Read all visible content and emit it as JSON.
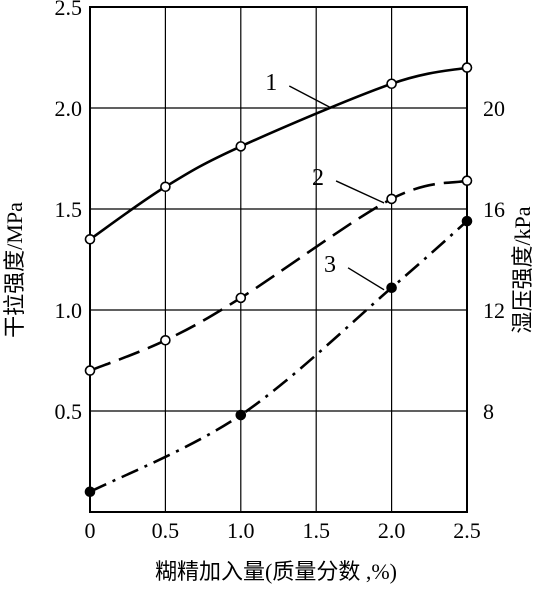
{
  "chart_data": {
    "type": "line",
    "xlabel": "糊精加入量(质量分数 ,%)",
    "ylabel_left": "干拉强度/MPa",
    "ylabel_right": "湿压强度/kPa",
    "xlim": [
      0,
      2.5
    ],
    "ylim_left": [
      0,
      2.5
    ],
    "ylim_right": [
      4,
      24
    ],
    "x_ticks": [
      "0",
      "0.5",
      "1.0",
      "1.5",
      "2.0",
      "2.5"
    ],
    "y_ticks_left": [
      "0.5",
      "1.0",
      "1.5",
      "2.0",
      "2.5"
    ],
    "y_ticks_right": [
      "8",
      "12",
      "16",
      "20"
    ],
    "grid": true,
    "series": [
      {
        "name": "1",
        "axis": "left",
        "line_style": "solid",
        "marker": "open-circle",
        "x": [
          0,
          0.5,
          1.0,
          2.0,
          2.5
        ],
        "y": [
          1.35,
          1.61,
          1.81,
          2.12,
          2.2
        ],
        "label_anchor": [
          1.6,
          2.0
        ]
      },
      {
        "name": "2",
        "axis": "left",
        "line_style": "dashed",
        "marker": "open-circle",
        "x": [
          0,
          0.5,
          1.0,
          2.0,
          2.5
        ],
        "y": [
          0.7,
          0.85,
          1.06,
          1.55,
          1.64
        ],
        "label_anchor": [
          1.95,
          1.53
        ]
      },
      {
        "name": "3",
        "axis": "left",
        "line_style": "dash-dot",
        "marker": "filled-circle",
        "x": [
          0,
          1.0,
          2.0,
          2.5
        ],
        "y": [
          0.1,
          0.48,
          1.11,
          1.44
        ],
        "label_anchor": [
          1.95,
          1.1
        ]
      }
    ]
  }
}
